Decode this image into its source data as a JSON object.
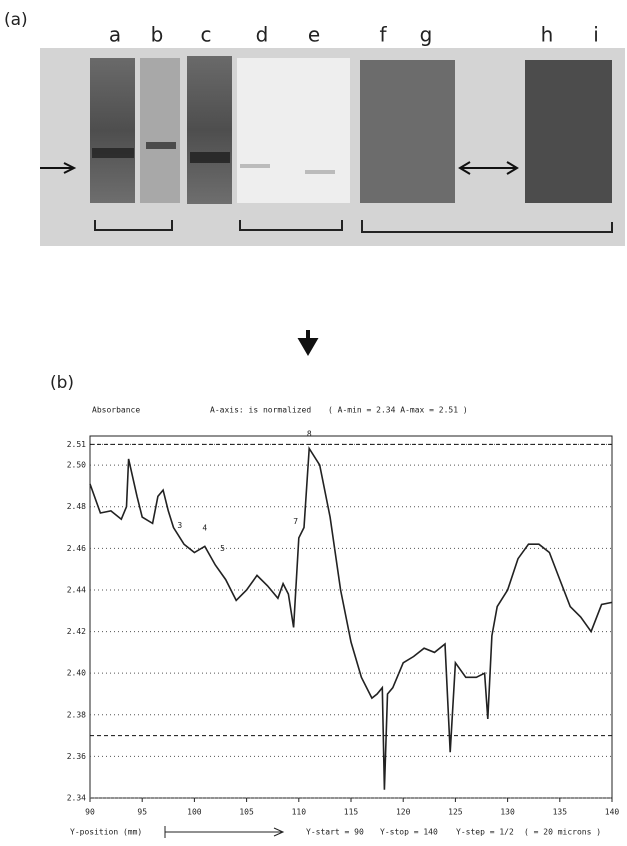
{
  "panel_a": {
    "label": "(a)",
    "lanes": [
      "a",
      "b",
      "c",
      "d",
      "e",
      "f",
      "g",
      "h",
      "i"
    ]
  },
  "chart_data": {
    "type": "line",
    "panel_label": "(b)",
    "y_label": "Absorbance",
    "header_note": "A-axis: is normalized",
    "range_note": "( A-min = 2.34 A-max = 2.51 )",
    "x_label": "Y-position (mm)",
    "footer": [
      "Y-start = 90",
      "Y-stop = 140",
      "Y-step = 1/2",
      "( = 20 microns )"
    ],
    "color": "#222222",
    "grid": true,
    "dashed_lines": [
      2.51,
      2.37
    ],
    "peak_labels": [
      {
        "text": "3",
        "x": 98.6,
        "y": 2.468
      },
      {
        "text": "4",
        "x": 101,
        "y": 2.467
      },
      {
        "text": "5",
        "x": 102.7,
        "y": 2.457
      },
      {
        "text": "7",
        "x": 109.7,
        "y": 2.47
      },
      {
        "text": "8",
        "x": 111,
        "y": 2.512
      }
    ],
    "x": [
      90,
      91,
      92,
      93,
      93.5,
      93.7,
      94.5,
      95,
      96,
      96.5,
      97,
      97.5,
      98,
      99,
      100,
      101,
      102,
      103,
      104,
      105,
      106,
      107,
      108,
      108.5,
      109,
      109.5,
      110,
      110.5,
      111,
      112,
      113,
      114,
      115,
      116,
      117,
      117.5,
      118,
      118.2,
      118.5,
      119,
      120,
      121,
      122,
      123,
      124,
      124.5,
      125,
      126,
      127,
      127.8,
      128.1,
      128.5,
      129,
      130,
      131,
      132,
      133,
      134,
      135,
      136,
      137,
      138,
      139,
      140
    ],
    "values": [
      2.491,
      2.477,
      2.478,
      2.474,
      2.48,
      2.503,
      2.485,
      2.475,
      2.472,
      2.485,
      2.488,
      2.478,
      2.47,
      2.462,
      2.458,
      2.461,
      2.452,
      2.445,
      2.435,
      2.44,
      2.447,
      2.442,
      2.436,
      2.443,
      2.438,
      2.422,
      2.465,
      2.47,
      2.508,
      2.5,
      2.475,
      2.44,
      2.415,
      2.398,
      2.388,
      2.39,
      2.393,
      2.344,
      2.39,
      2.393,
      2.405,
      2.408,
      2.412,
      2.41,
      2.414,
      2.362,
      2.405,
      2.398,
      2.398,
      2.4,
      2.378,
      2.418,
      2.432,
      2.44,
      2.455,
      2.462,
      2.462,
      2.458,
      2.445,
      2.432,
      2.427,
      2.42,
      2.433,
      2.434
    ],
    "xlim": [
      90,
      140
    ],
    "xticks": [
      90,
      95,
      100,
      105,
      110,
      115,
      120,
      125,
      130,
      135,
      140
    ],
    "ylim": [
      2.34,
      2.514
    ],
    "yticks": [
      2.34,
      2.36,
      2.38,
      {
        "value": 2.4,
        "label": "2.40"
      },
      2.42,
      2.44,
      2.46,
      2.48,
      {
        "value": 2.5,
        "label": "2.50"
      },
      2.51
    ]
  }
}
